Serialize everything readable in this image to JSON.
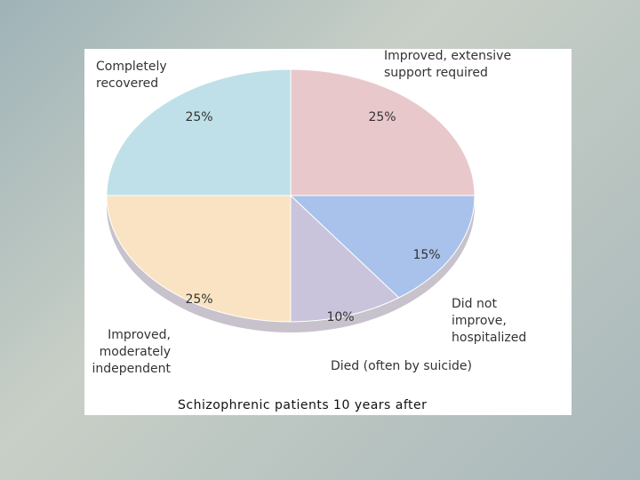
{
  "chart_data": {
    "type": "pie",
    "title": "Schizophrenic patients 10 years after",
    "categories": [
      "Improved, extensive support required",
      "Did not improve, hospitalized",
      "Died (often by suicide)",
      "Improved, moderately independent",
      "Completely recovered"
    ],
    "values": [
      25,
      15,
      10,
      25,
      25
    ],
    "value_labels": [
      "25%",
      "15%",
      "10%",
      "25%",
      "25%"
    ],
    "colors": [
      "#e9c8cc",
      "#a8c2ec",
      "#c9c4dc",
      "#f9e3c2",
      "#bfe0e8"
    ]
  }
}
